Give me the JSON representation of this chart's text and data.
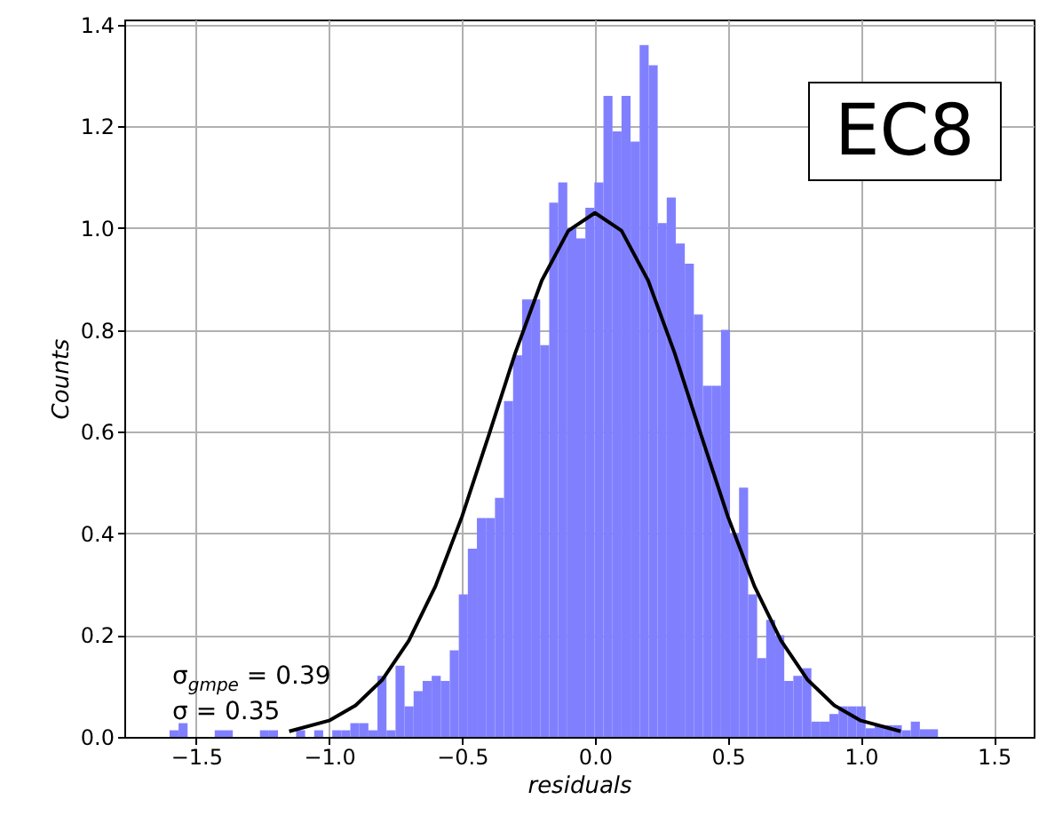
{
  "chart_data": {
    "type": "histogram",
    "xlabel": "residuals",
    "ylabel": "Counts",
    "annotations": [
      "σ$_{gmpe}$ =  0.39",
      "σ =  0.35",
      "EC8"
    ],
    "bins": [
      -1.6,
      -1.566,
      -1.532,
      -1.498,
      -1.464,
      -1.43,
      -1.396,
      -1.362,
      -1.328,
      -1.294,
      -1.26,
      -1.226,
      -1.192,
      -1.158,
      -1.124,
      -1.09,
      -1.056,
      -1.022,
      -0.988,
      -0.954,
      -0.92,
      -0.886,
      -0.852,
      -0.818,
      -0.784,
      -0.75,
      -0.716,
      -0.682,
      -0.648,
      -0.614,
      -0.58,
      -0.546,
      -0.512,
      -0.478,
      -0.444,
      -0.41,
      -0.376,
      -0.342,
      -0.308,
      -0.274,
      -0.24,
      -0.206,
      -0.172,
      -0.138,
      -0.104,
      -0.07,
      -0.036,
      -0.002,
      0.032,
      0.066,
      0.1,
      0.134,
      0.168,
      0.202,
      0.236,
      0.27,
      0.304,
      0.338,
      0.372,
      0.406,
      0.44,
      0.474,
      0.508,
      0.542,
      0.576,
      0.61,
      0.644,
      0.678,
      0.712,
      0.746,
      0.78,
      0.814,
      0.848,
      0.882,
      0.916,
      0.95,
      0.984,
      1.018,
      1.052,
      1.086,
      1.12,
      1.154,
      1.188,
      1.222,
      1.256,
      1.29
    ],
    "values": [
      0.013,
      0.027,
      0,
      0,
      0,
      0.013,
      0.013,
      0,
      0,
      0,
      0.013,
      0.013,
      0,
      0,
      0.013,
      0,
      0.013,
      0,
      0.013,
      0.013,
      0.027,
      0.027,
      0.013,
      0.12,
      0.013,
      0.14,
      0.06,
      0.09,
      0.11,
      0.12,
      0.11,
      0.17,
      0.28,
      0.37,
      0.43,
      0.43,
      0.47,
      0.66,
      0.75,
      0.86,
      0.86,
      0.77,
      1.05,
      1.09,
      1.0,
      0.98,
      1.04,
      1.09,
      1.26,
      1.19,
      1.26,
      1.17,
      1.36,
      1.32,
      1.01,
      1.06,
      0.97,
      0.93,
      0.83,
      0.69,
      0.69,
      0.8,
      0.4,
      0.49,
      0.28,
      0.155,
      0.23,
      0.2,
      0.11,
      0.12,
      0.135,
      0.03,
      0.03,
      0.045,
      0.06,
      0.06,
      0.06,
      0.017,
      0.023,
      0.023,
      0.023,
      0.013,
      0.03,
      0.015,
      0.015
    ],
    "color": "#8080ff",
    "series": [
      {
        "type": "line",
        "color": "#000000",
        "x": [
          -1.15,
          -1.0,
          -0.9,
          -0.8,
          -0.7,
          -0.6,
          -0.5,
          -0.4,
          -0.3,
          -0.2,
          -0.1,
          0,
          0.1,
          0.2,
          0.3,
          0.4,
          0.5,
          0.6,
          0.7,
          0.8,
          0.9,
          1.0,
          1.15
        ],
        "values": [
          0.011,
          0.032,
          0.062,
          0.112,
          0.189,
          0.296,
          0.433,
          0.592,
          0.754,
          0.897,
          0.995,
          1.03,
          0.995,
          0.897,
          0.754,
          0.592,
          0.433,
          0.296,
          0.189,
          0.112,
          0.062,
          0.032,
          0.011
        ]
      }
    ],
    "xlim": [
      -1.77,
      1.65
    ],
    "ylim": [
      0,
      1.41
    ],
    "xticks": [
      {
        "value": -1.5,
        "label": "−1.5"
      },
      {
        "value": -1.0,
        "label": "−1.0"
      },
      {
        "value": -0.5,
        "label": "−0.5"
      },
      {
        "value": 0,
        "label": "0.0"
      },
      {
        "value": 0.5,
        "label": "0.5"
      },
      {
        "value": 1.0,
        "label": "1.0"
      },
      {
        "value": 1.5,
        "label": "1.5"
      }
    ],
    "yticks": [
      {
        "value": 0,
        "label": "0.0"
      },
      {
        "value": 0.2,
        "label": "0.2"
      },
      {
        "value": 0.4,
        "label": "0.4"
      },
      {
        "value": 0.6,
        "label": "0.6"
      },
      {
        "value": 0.8,
        "label": "0.8"
      },
      {
        "value": 1.0,
        "label": "1.0"
      },
      {
        "value": 1.2,
        "label": "1.2"
      },
      {
        "value": 1.4,
        "label": "1.4"
      }
    ],
    "grid": true
  }
}
